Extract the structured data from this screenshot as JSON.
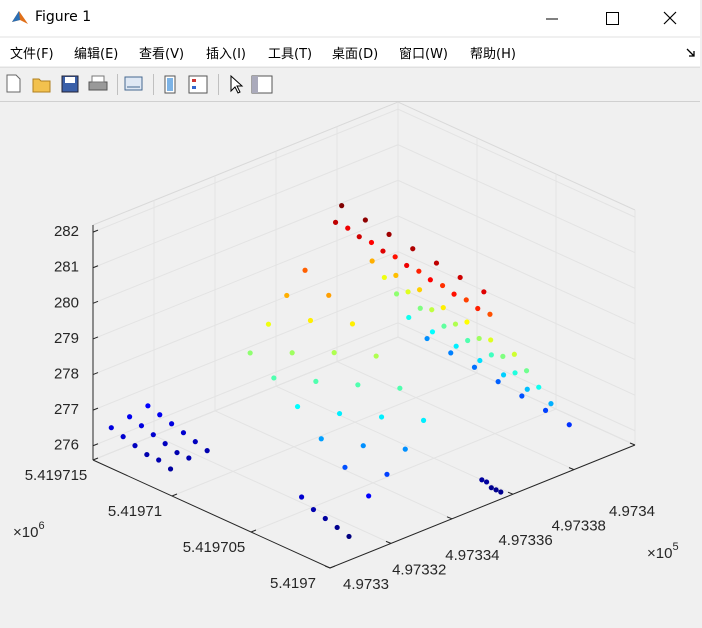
{
  "window": {
    "title": "Figure 1"
  },
  "menu": [
    "文件(F)",
    "编辑(E)",
    "查看(V)",
    "插入(I)",
    "工具(T)",
    "桌面(D)",
    "窗口(W)",
    "帮助(H)"
  ],
  "chart_data": {
    "type": "scatter3",
    "colormap": "jet",
    "grid": true,
    "xlim": [
      4.9733,
      4.9734
    ],
    "xticks": [
      4.9733,
      4.97332,
      4.97334,
      4.97336,
      4.97338,
      4.9734
    ],
    "x_exponent": {
      "base": "×10",
      "power": 5
    },
    "ylim": [
      5.4197,
      5.419715
    ],
    "yticks": [
      5.4197,
      5.419705,
      5.41971,
      5.419715
    ],
    "y_exponent": {
      "base": "×10",
      "power": 6
    },
    "zlim": [
      275.6,
      282.2
    ],
    "zticks": [
      276,
      277,
      278,
      279,
      280,
      281,
      282
    ],
    "series": [
      {
        "x": [
          4.973352,
          4.973352,
          4.973352,
          4.973352,
          4.973352,
          4.973352,
          4.973352,
          4.97335,
          4.97335,
          4.97335,
          4.97335,
          4.97335,
          4.97335,
          4.97335,
          4.973354,
          4.973354,
          4.973354,
          4.973354,
          4.973354,
          4.973354,
          4.973354,
          4.973362,
          4.973362,
          4.973362,
          4.973362,
          4.973362,
          4.973362,
          4.973362,
          4.973366,
          4.973366,
          4.973366,
          4.973366,
          4.973366,
          4.973366,
          4.973366,
          4.97337,
          4.97337,
          4.97337,
          4.97337,
          4.97337,
          4.97337,
          4.97337,
          4.973374,
          4.973374,
          4.973374,
          4.973374,
          4.973374,
          4.973374,
          4.973374,
          4.97338,
          4.97338,
          4.97338,
          4.97338,
          4.97338,
          4.97338,
          4.97338,
          4.97334,
          4.97334,
          4.97334,
          4.97334,
          4.97334,
          4.97334,
          4.973334,
          4.973334,
          4.973334,
          4.973334,
          4.973334,
          4.973334,
          4.973328,
          4.973328,
          4.973328,
          4.973328,
          4.973328,
          4.973328,
          4.973322,
          4.973322,
          4.973322,
          4.973322,
          4.973322,
          4.973322,
          4.973306,
          4.973306,
          4.973306,
          4.973306,
          4.973306,
          4.973306,
          4.973312,
          4.973312,
          4.973312,
          4.973312,
          4.973312,
          4.973312,
          4.973318,
          4.973318,
          4.973318,
          4.973318,
          4.973318,
          4.973318,
          4.973314,
          4.973314,
          4.973314,
          4.973314,
          4.973314,
          4.973356,
          4.973356,
          4.973356,
          4.973356,
          4.973356
        ],
        "y": [
          5.4197093,
          5.4197078,
          5.4197063,
          5.4197048,
          5.4197033,
          5.4197018,
          5.4197003,
          5.4197093,
          5.4197078,
          5.4197063,
          5.4197048,
          5.4197033,
          5.4197018,
          5.4197003,
          5.4197093,
          5.4197078,
          5.4197063,
          5.4197048,
          5.4197033,
          5.4197018,
          5.4197003,
          5.4197093,
          5.4197078,
          5.4197063,
          5.4197048,
          5.4197033,
          5.4197018,
          5.4197003,
          5.4197093,
          5.4197078,
          5.4197063,
          5.4197048,
          5.4197033,
          5.4197018,
          5.4197003,
          5.4197093,
          5.4197078,
          5.4197063,
          5.4197048,
          5.4197033,
          5.4197018,
          5.4197003,
          5.4197093,
          5.4197078,
          5.4197063,
          5.4197048,
          5.4197033,
          5.4197018,
          5.4197003,
          5.4197093,
          5.4197078,
          5.4197063,
          5.4197048,
          5.4197033,
          5.4197018,
          5.4197003,
          5.4197093,
          5.4197078,
          5.4197063,
          5.4197048,
          5.4197033,
          5.4197018,
          5.4197093,
          5.4197078,
          5.4197063,
          5.4197048,
          5.4197033,
          5.4197018,
          5.4197093,
          5.4197078,
          5.4197063,
          5.4197048,
          5.4197033,
          5.4197018,
          5.4197093,
          5.4197078,
          5.4197063,
          5.4197048,
          5.4197033,
          5.4197018,
          5.419715,
          5.41971425,
          5.4197135,
          5.41971275,
          5.419712,
          5.41971125,
          5.419715,
          5.41971425,
          5.4197135,
          5.41971275,
          5.419712,
          5.41971125,
          5.419715,
          5.41971425,
          5.4197135,
          5.41971275,
          5.419712,
          5.41971125,
          5.4197045,
          5.41970375,
          5.419703,
          5.41970225,
          5.4197015,
          5.4197012,
          5.4197009,
          5.4197006,
          5.4197003,
          5.4197
        ],
        "z": [
          282.1,
          282,
          281.9,
          281.8,
          281.7,
          281.6,
          281.5,
          281.7,
          281.6,
          281.5,
          281.4,
          281.3,
          281.2,
          281.1,
          281.4,
          281.3,
          281.2,
          281.1,
          281,
          280.9,
          280.8,
          280.2,
          280.1,
          280,
          279.8,
          279.7,
          279.5,
          279.4,
          279.6,
          279.5,
          279.3,
          279.2,
          279.1,
          278.9,
          278.8,
          279,
          278.9,
          278.7,
          278.6,
          278.5,
          278.3,
          278.2,
          278.2,
          278.1,
          278,
          277.9,
          277.8,
          277.7,
          277.6,
          277.4,
          277.3,
          277.2,
          277.1,
          277,
          276.9,
          276.8,
          280.7,
          280.3,
          279.8,
          279.2,
          278.6,
          278,
          280.2,
          279.8,
          279.2,
          278.6,
          278,
          277.4,
          279.6,
          279.1,
          278.6,
          278,
          277.4,
          276.9,
          279,
          278.6,
          278.1,
          277.5,
          277,
          276.5,
          276.3,
          276.2,
          276.1,
          276,
          276,
          275.9,
          276.4,
          276.3,
          276.2,
          276.1,
          276,
          276,
          276.5,
          276.4,
          276.3,
          276.2,
          276.1,
          276,
          276.2,
          276,
          275.9,
          275.8,
          275.7,
          275.9,
          275.9,
          275.8,
          275.8,
          275.8
        ]
      }
    ]
  }
}
